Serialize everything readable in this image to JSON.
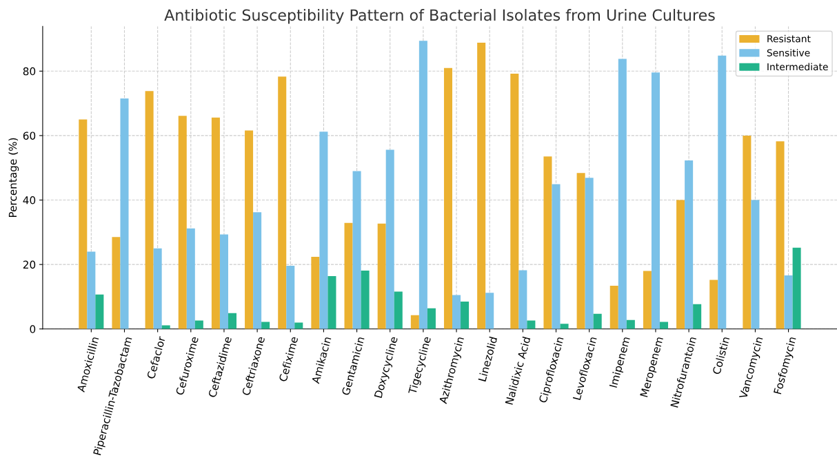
{
  "chart_data": {
    "type": "bar",
    "title": "Antibiotic Susceptibility Pattern of Bacterial Isolates from Urine Cultures",
    "ylabel": "Percentage (%)",
    "categories": [
      "Amoxicillin",
      "Piperacillin-Tazobactam",
      "Cefaclor",
      "Cefuroxime",
      "Ceftazidime",
      "Ceftriaxone",
      "Cefixime",
      "Amikacin",
      "Gentamicin",
      "Doxycycline",
      "Tigecycline",
      "Azithromycin",
      "Linezolid",
      "Nalidixic Acid",
      "Ciprofloxacin",
      "Levofloxacin",
      "Imipenem",
      "Meropenem",
      "Nitrofurantoin",
      "Colistin",
      "Vancomycin",
      "Fosfomycin"
    ],
    "series": [
      {
        "name": "Resistant",
        "color": "#ebb130",
        "values": [
          65,
          28.5,
          73.8,
          66.1,
          65.6,
          61.6,
          78.3,
          22.4,
          32.9,
          32.7,
          4.3,
          81,
          88.8,
          79.2,
          53.5,
          48.4,
          13.4,
          18,
          40,
          15.2,
          60,
          58.2
        ]
      },
      {
        "name": "Sensitive",
        "color": "#7ac1e8",
        "values": [
          24,
          71.5,
          25,
          31.2,
          29.3,
          36.2,
          19.6,
          61.2,
          49,
          55.6,
          89.4,
          10.5,
          11.2,
          18.2,
          44.9,
          46.9,
          83.8,
          79.6,
          52.3,
          84.8,
          40,
          16.6
        ]
      },
      {
        "name": "Intermediate",
        "color": "#22b38a",
        "values": [
          10.7,
          0,
          1.1,
          2.6,
          4.9,
          2.2,
          2.0,
          16.4,
          18.1,
          11.6,
          6.4,
          8.5,
          0,
          2.6,
          1.6,
          4.7,
          2.8,
          2.2,
          7.7,
          0,
          0,
          25.2
        ]
      }
    ],
    "ylim": [
      0,
      93.9
    ],
    "yticks": [
      0,
      20,
      40,
      60,
      80
    ],
    "grid": true,
    "legend": "top right"
  }
}
